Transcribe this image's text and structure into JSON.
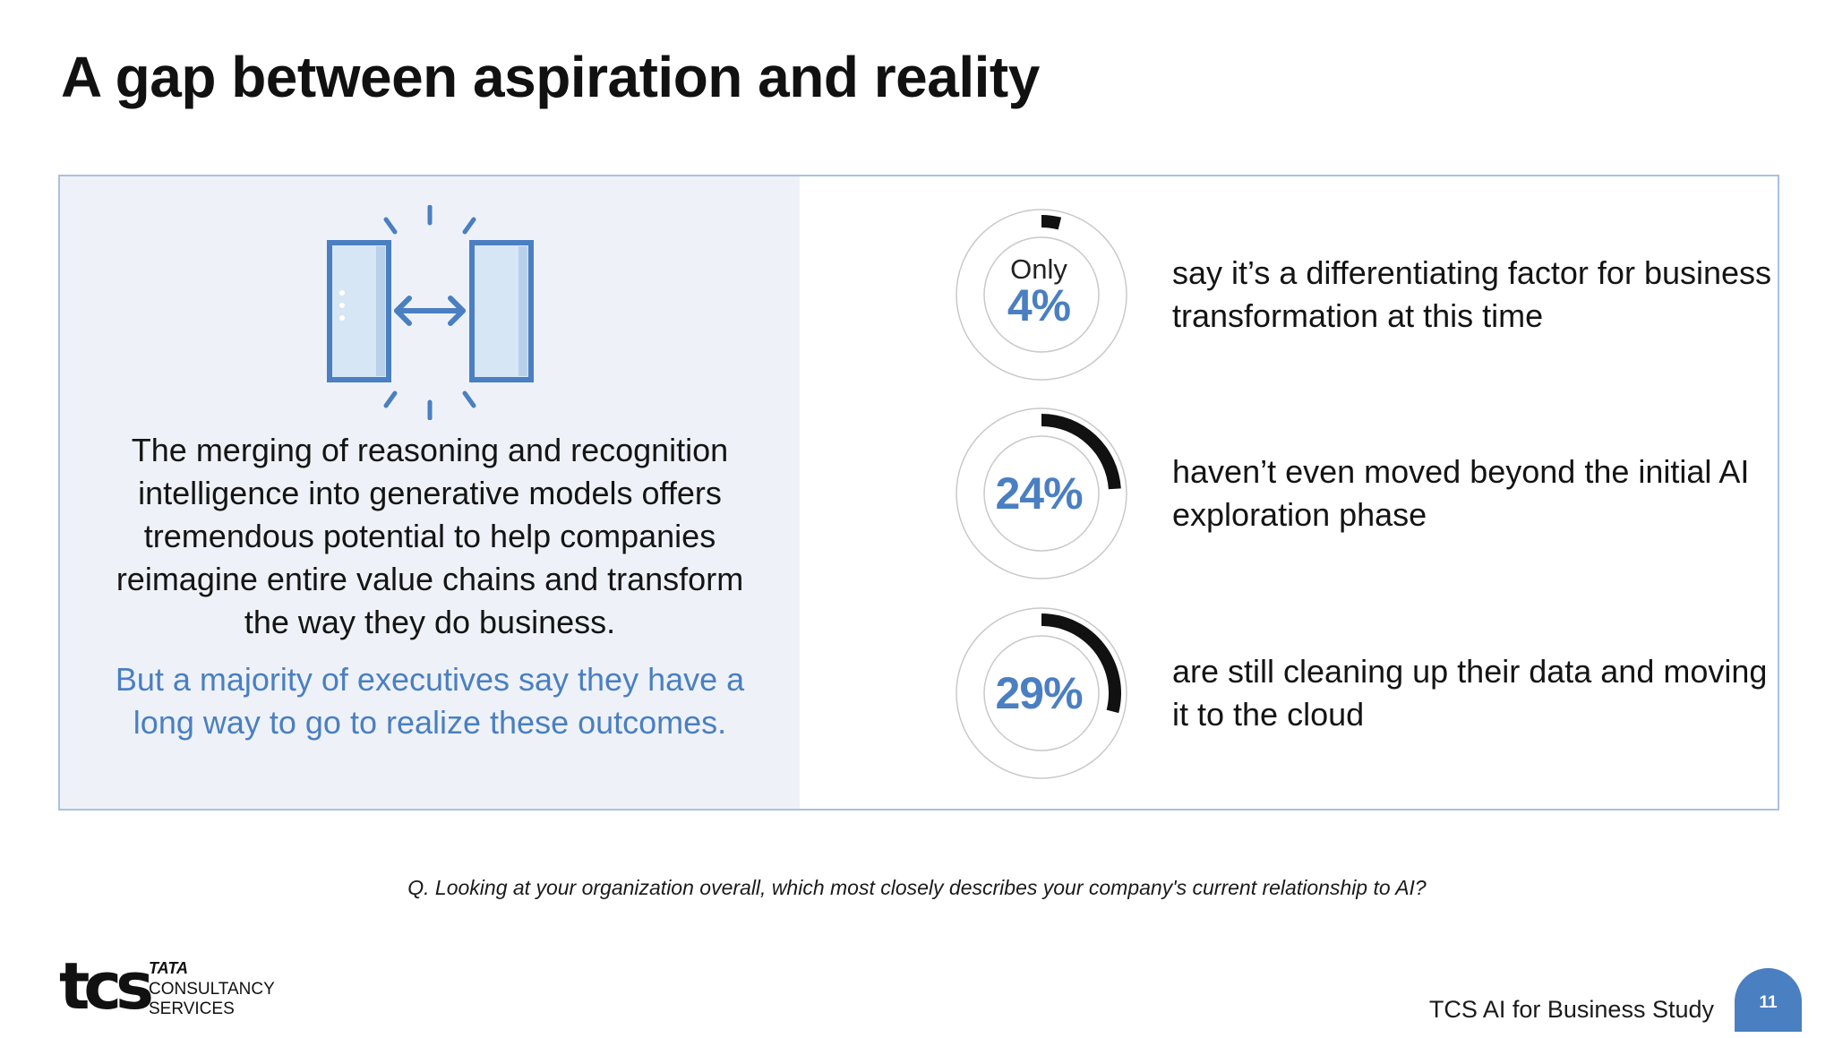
{
  "title": "A gap between aspiration and reality",
  "left_panel": {
    "icon": "merge-arrows-icon",
    "body": "The merging of reasoning and recognition intelligence into generative models offers tremendous potential to help companies reimagine entire value chains and transform the way they do business.",
    "highlight": "But a majority of executives say they have a long way to go to realize these outcomes."
  },
  "stats": [
    {
      "prefix": "Only",
      "value": "4%",
      "percent": 4,
      "description": "say it’s a differentiating factor for business transformation at this time"
    },
    {
      "prefix": "",
      "value": "24%",
      "percent": 24,
      "description": "haven’t even moved beyond the initial AI exploration phase"
    },
    {
      "prefix": "",
      "value": "29%",
      "percent": 29,
      "description": "are still cleaning up their data and moving it to the cloud"
    }
  ],
  "question": "Q. Looking at your organization overall, which most closely describes your company's current relationship to AI?",
  "footer": {
    "logo_mark": "tcs",
    "logo_brand": "TATA",
    "logo_line1": "CONSULTANCY",
    "logo_line2": "SERVICES",
    "study_label": "TCS AI for Business Study",
    "page_number": "11"
  },
  "colors": {
    "accent": "#4a7fc1",
    "panel_bg": "#eef2f8",
    "panel_border": "#a9c1dc",
    "gauge_fill": "#111111"
  }
}
